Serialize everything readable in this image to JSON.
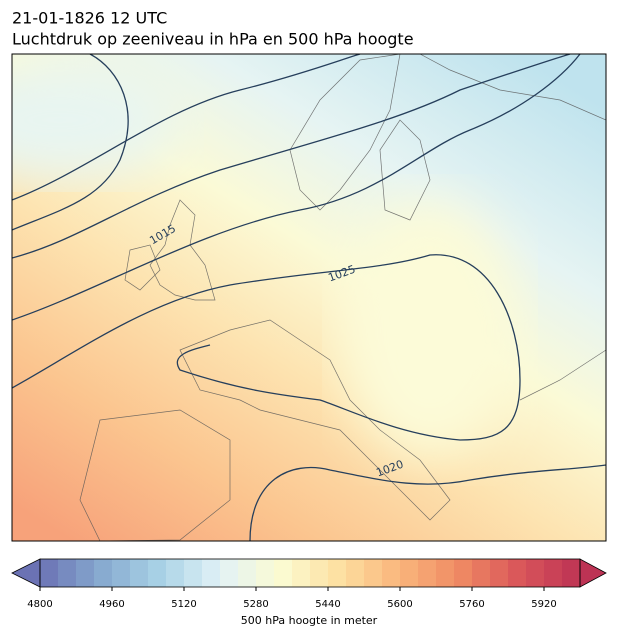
{
  "title": "21-01-1826 12 UTC",
  "subtitle": "Luchtdruk op zeeniveau in hPa en 500 hPa hoogte",
  "map": {
    "isobar_labels": [
      "1015",
      "1025",
      "1020"
    ]
  },
  "colorbar": {
    "label": "500 hPa hoogte in meter",
    "range": [
      4800,
      6000
    ],
    "step": 40,
    "ticks": [
      4800,
      4960,
      5120,
      5280,
      5440,
      5600,
      5760,
      5920
    ],
    "palette": [
      "#6b72b4",
      "#86a9cf",
      "#a9d2e6",
      "#e2f2f7",
      "#fbfbd2",
      "#fde0a0",
      "#f9b57c",
      "#ef8a63",
      "#d9555a",
      "#bd3354"
    ]
  }
}
